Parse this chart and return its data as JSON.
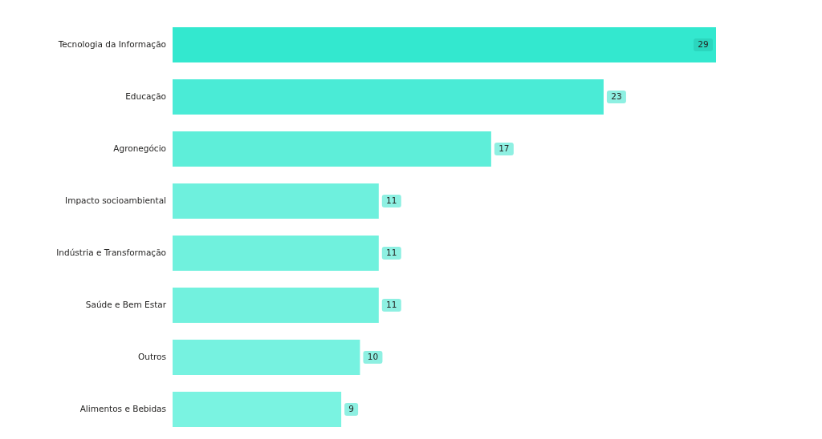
{
  "chart_data": {
    "type": "bar",
    "orientation": "horizontal",
    "data_labels": true,
    "categories": [
      "Tecnologia da Informação",
      "Educação",
      "Agronegócio",
      "Impacto socioambiental",
      "Indústria e Transformação",
      "Saúde e Bem Estar",
      "Outros",
      "Alimentos e Bebidas"
    ],
    "values": [
      29,
      23,
      17,
      11,
      11,
      11,
      10,
      9
    ],
    "colors": [
      "#33e8cf",
      "#4aebd6",
      "#5eeed9",
      "#6ef0dd",
      "#70f1dd",
      "#72f1de",
      "#76f2e0",
      "#7af3e1"
    ]
  }
}
